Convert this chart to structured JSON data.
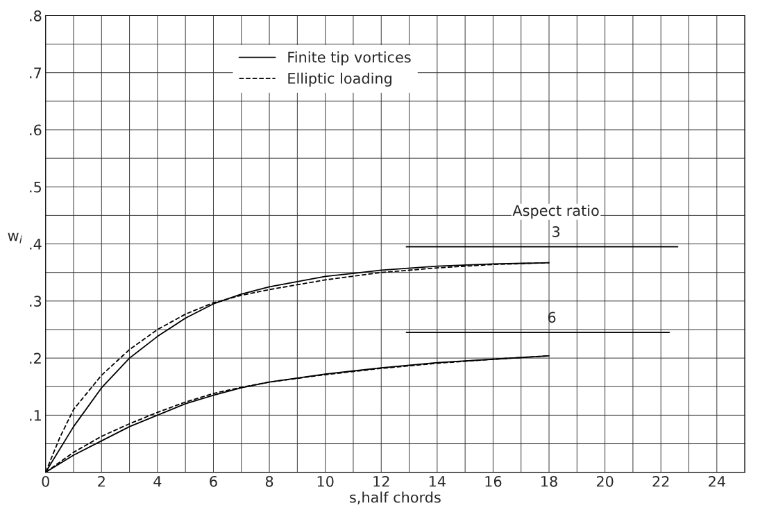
{
  "chart_data": {
    "type": "line",
    "xlabel": "s,half chords",
    "ylabel": "w$_{i}$",
    "xlim": [
      0,
      25
    ],
    "ylim": [
      0,
      0.8
    ],
    "xticks": [
      0,
      {
        "value": 1,
        "label": null
      },
      2,
      {
        "value": 3,
        "label": null
      },
      4,
      {
        "value": 5,
        "label": null
      },
      6,
      {
        "value": 7,
        "label": null
      },
      8,
      {
        "value": 9,
        "label": null
      },
      10,
      {
        "value": 11,
        "label": null
      },
      12,
      {
        "value": 13,
        "label": null
      },
      14,
      {
        "value": 15,
        "label": null
      },
      16,
      {
        "value": 17,
        "label": null
      },
      18,
      {
        "value": 19,
        "label": null
      },
      20,
      {
        "value": 21,
        "label": null
      },
      22,
      {
        "value": 23,
        "label": null
      },
      24,
      {
        "value": 25,
        "label": null
      }
    ],
    "yticks": [
      {
        "value": 0,
        "label": null
      },
      {
        "value": 0.05,
        "label": null
      },
      {
        "value": 0.1,
        "label": ".1"
      },
      {
        "value": 0.15,
        "label": null
      },
      {
        "value": 0.2,
        "label": ".2"
      },
      {
        "value": 0.25,
        "label": null
      },
      {
        "value": 0.3,
        "label": ".3"
      },
      {
        "value": 0.35,
        "label": null
      },
      {
        "value": 0.4,
        "label": ".4"
      },
      {
        "value": 0.45,
        "label": null
      },
      {
        "value": 0.5,
        "label": ".5"
      },
      {
        "value": 0.55,
        "label": null
      },
      {
        "value": 0.6,
        "label": ".6"
      },
      {
        "value": 0.65,
        "label": null
      },
      {
        "value": 0.7,
        "label": ".7"
      },
      {
        "value": 0.75,
        "label": null
      },
      {
        "value": 0.8,
        "label": ".8"
      }
    ],
    "grid": true,
    "legend": "top",
    "marker": "none",
    "series": [
      {
        "name": "Finite tip vortices",
        "color": "#000000",
        "line_style": "solid",
        "x": [
          0,
          1,
          2,
          3,
          4,
          5,
          6,
          7,
          8,
          10,
          12,
          14,
          16,
          18
        ],
        "values": [
          0,
          0.08,
          0.148,
          0.2,
          0.238,
          0.27,
          0.295,
          0.312,
          0.325,
          0.343,
          0.354,
          0.361,
          0.365,
          0.367
        ]
      },
      {
        "name": "Elliptic loading",
        "color": "#000000",
        "line_style": "dashed",
        "x": [
          0,
          0.5,
          1,
          2,
          3,
          4,
          5,
          6,
          7,
          8,
          10,
          12,
          14,
          16,
          18
        ],
        "values": [
          0,
          0.06,
          0.11,
          0.17,
          0.215,
          0.25,
          0.277,
          0.297,
          0.31,
          0.32,
          0.337,
          0.35,
          0.358,
          0.364,
          0.367
        ]
      },
      {
        "color": "#000000",
        "line_style": "solid",
        "x": [
          0,
          1,
          2,
          3,
          4,
          5,
          6,
          7,
          8,
          10,
          12,
          14,
          16,
          18
        ],
        "values": [
          0,
          0.03,
          0.055,
          0.08,
          0.1,
          0.12,
          0.135,
          0.148,
          0.158,
          0.172,
          0.183,
          0.192,
          0.198,
          0.204
        ]
      },
      {
        "color": "#000000",
        "line_style": "dashed",
        "x": [
          0,
          1,
          2,
          3,
          4,
          5,
          6,
          7,
          8,
          10,
          12,
          14,
          16,
          18
        ],
        "values": [
          0,
          0.035,
          0.063,
          0.085,
          0.105,
          0.123,
          0.138,
          0.149,
          0.158,
          0.171,
          0.182,
          0.191,
          0.198,
          0.204
        ]
      },
      {
        "name": "3",
        "color": "#000000",
        "line_style": "solid",
        "x": [
          12.9,
          22.6
        ],
        "values": [
          0.395,
          0.395
        ]
      },
      {
        "name": "6",
        "color": "#000000",
        "line_style": "solid",
        "x": [
          12.9,
          22.3
        ],
        "values": [
          0.245,
          0.245
        ]
      }
    ],
    "annotations": [
      "Aspect ratio"
    ]
  }
}
